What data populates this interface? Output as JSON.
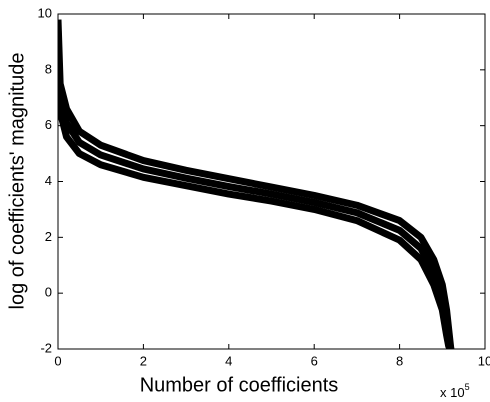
{
  "chart_data": {
    "type": "line",
    "xlabel": "Number of coefficients",
    "ylabel": "log of coefficients' magnitude",
    "x_multiplier": {
      "base": "x 10",
      "exponent": "5"
    },
    "x": [
      0,
      0.05,
      0.2,
      0.5,
      1,
      2,
      3,
      4,
      5,
      6,
      7,
      8,
      8.5,
      8.8,
      9.0,
      9.1,
      9.15,
      9.2
    ],
    "series": [
      {
        "color": "#000000",
        "values": [
          9.8,
          7.5,
          6.6,
          5.8,
          5.3,
          4.75,
          4.4,
          4.1,
          3.8,
          3.5,
          3.15,
          2.6,
          2.0,
          1.2,
          0.3,
          -0.6,
          -1.3,
          -2
        ]
      },
      {
        "color": "#000000",
        "values": [
          9.4,
          7.0,
          6.1,
          5.4,
          4.95,
          4.45,
          4.12,
          3.82,
          3.55,
          3.25,
          2.88,
          2.25,
          1.6,
          0.75,
          -0.15,
          -1.05,
          -1.65,
          -2
        ]
      },
      {
        "color": "#000000",
        "values": [
          9.0,
          6.5,
          5.6,
          5.0,
          4.6,
          4.15,
          3.85,
          3.55,
          3.3,
          3.0,
          2.6,
          1.9,
          1.2,
          0.3,
          -0.6,
          -1.5,
          -1.9,
          -2
        ]
      }
    ],
    "xlim": [
      0,
      10
    ],
    "xticks": [
      0,
      2,
      4,
      6,
      8,
      10
    ],
    "ylim": [
      -2,
      10
    ],
    "yticks": [
      -2,
      0,
      2,
      4,
      6,
      8,
      10
    ],
    "grid": false
  }
}
